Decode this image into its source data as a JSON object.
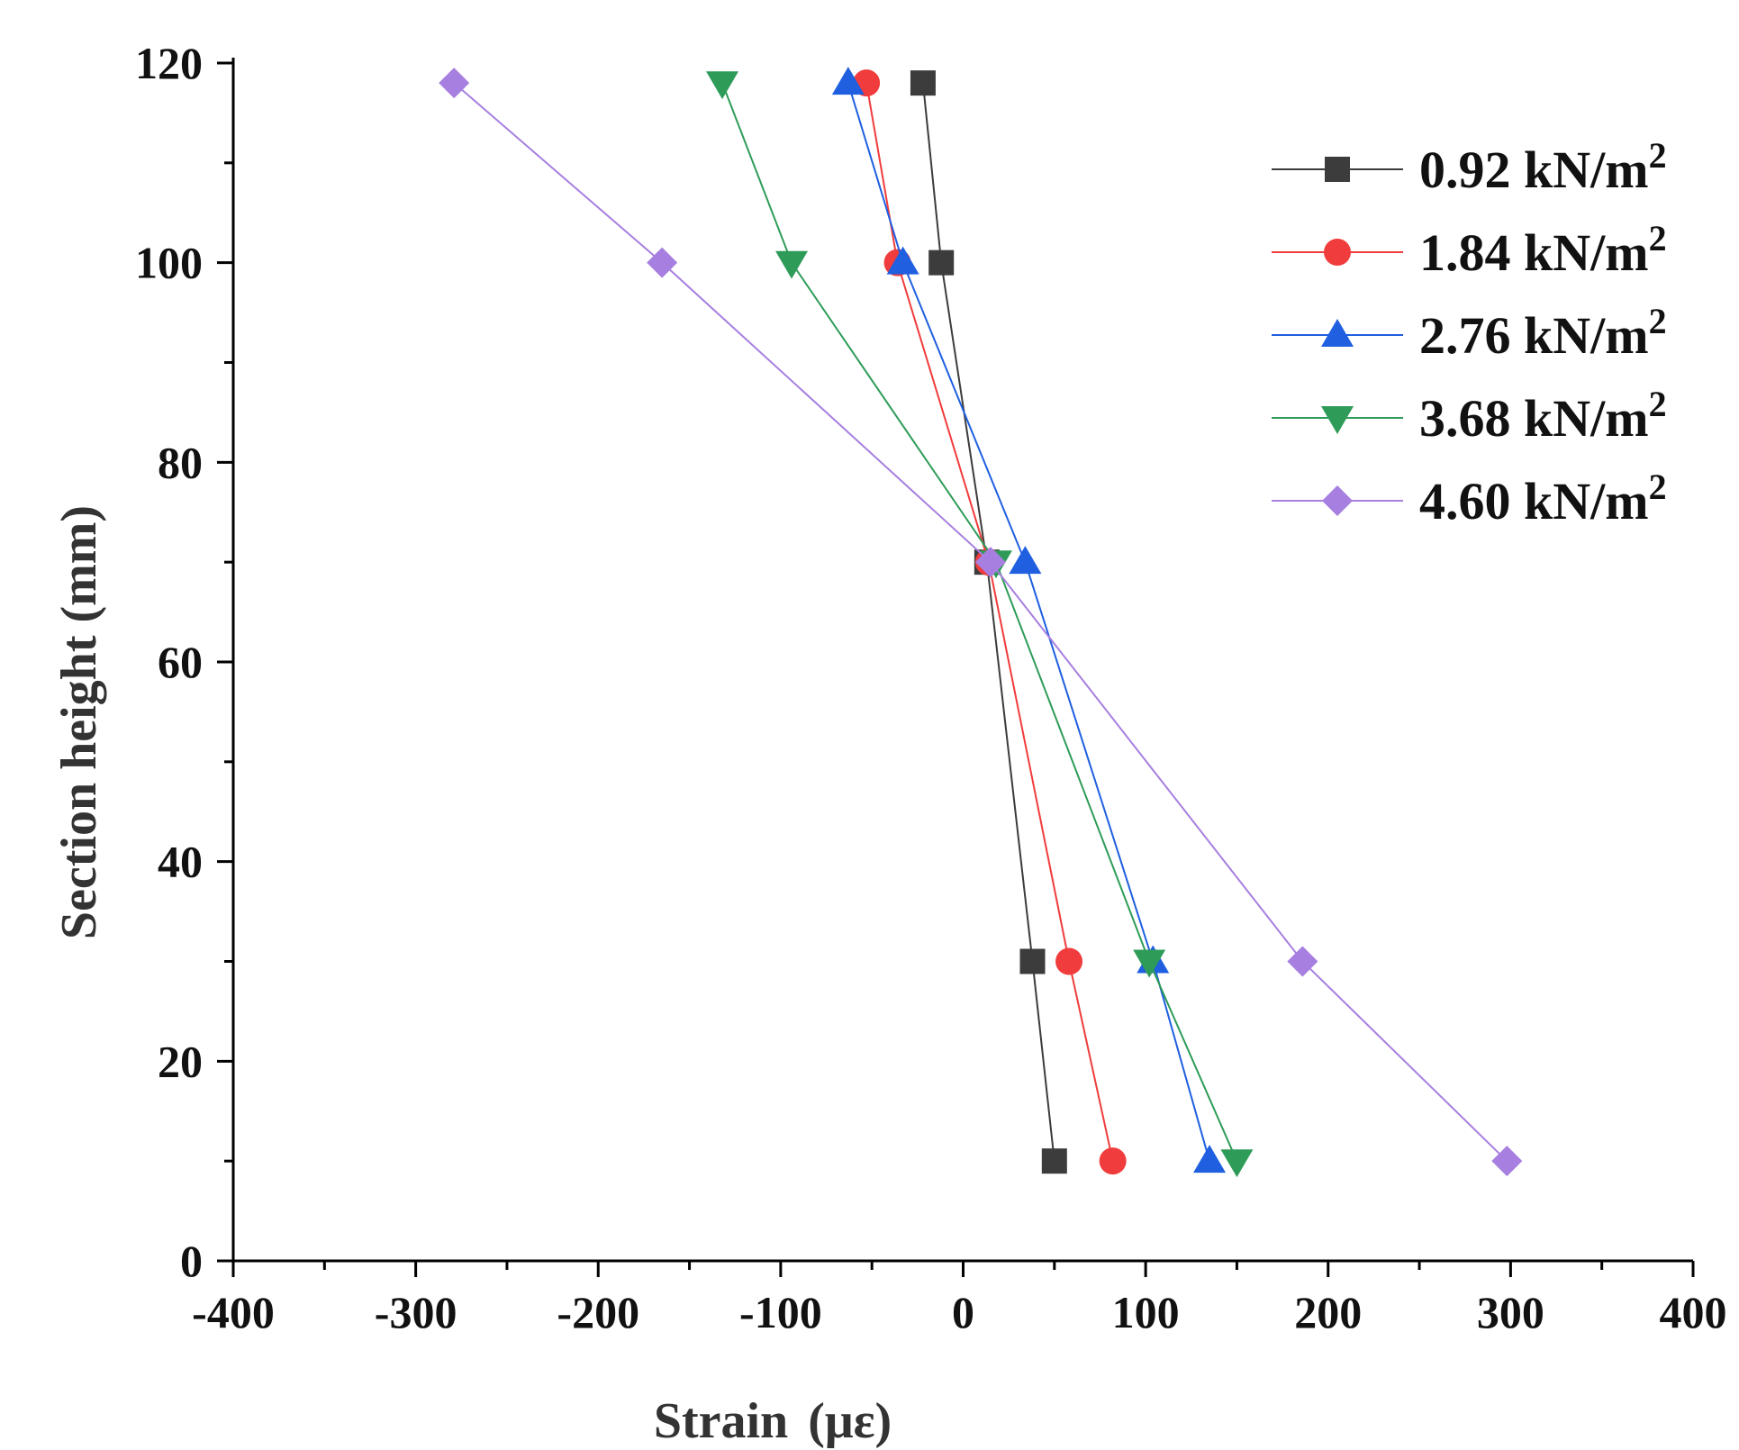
{
  "chart_data": {
    "type": "line",
    "title": "",
    "xlabel": "Strain",
    "xlabel_unit": "(με)",
    "ylabel": "Section height (mm)",
    "xlim": [
      -400,
      400
    ],
    "ylim": [
      0,
      120
    ],
    "x_ticks": [
      -400,
      -300,
      -200,
      -100,
      0,
      100,
      200,
      300,
      400
    ],
    "y_ticks": [
      0,
      20,
      40,
      60,
      80,
      100,
      120
    ],
    "grid": false,
    "legend_position": "top-right",
    "series": [
      {
        "name": "0.92 kN/m",
        "superscript": "2",
        "color": "#3c3c3c",
        "marker": "square",
        "points": [
          {
            "x": -22,
            "y": 118
          },
          {
            "x": -12,
            "y": 100
          },
          {
            "x": 13,
            "y": 70
          },
          {
            "x": 38,
            "y": 30
          },
          {
            "x": 50,
            "y": 10
          }
        ]
      },
      {
        "name": "1.84 kN/m",
        "superscript": "2",
        "color": "#f03c3c",
        "marker": "circle",
        "points": [
          {
            "x": -53,
            "y": 118
          },
          {
            "x": -36,
            "y": 100
          },
          {
            "x": 14,
            "y": 70
          },
          {
            "x": 58,
            "y": 30
          },
          {
            "x": 82,
            "y": 10
          }
        ]
      },
      {
        "name": "2.76 kN/m",
        "superscript": "2",
        "color": "#1f5fe0",
        "marker": "triangle-up",
        "points": [
          {
            "x": -63,
            "y": 118
          },
          {
            "x": -33,
            "y": 100
          },
          {
            "x": 34,
            "y": 70
          },
          {
            "x": 104,
            "y": 30
          },
          {
            "x": 135,
            "y": 10
          }
        ]
      },
      {
        "name": "3.68 kN/m",
        "superscript": "2",
        "color": "#2e9c58",
        "marker": "triangle-down",
        "points": [
          {
            "x": -132,
            "y": 118
          },
          {
            "x": -94,
            "y": 100
          },
          {
            "x": 18,
            "y": 70
          },
          {
            "x": 102,
            "y": 30
          },
          {
            "x": 150,
            "y": 10
          }
        ]
      },
      {
        "name": "4.60 kN/m",
        "superscript": "2",
        "color": "#a77fe0",
        "marker": "diamond",
        "points": [
          {
            "x": -279,
            "y": 118
          },
          {
            "x": -165,
            "y": 100
          },
          {
            "x": 15,
            "y": 70
          },
          {
            "x": 186,
            "y": 30
          },
          {
            "x": 298,
            "y": 10
          }
        ]
      }
    ]
  }
}
